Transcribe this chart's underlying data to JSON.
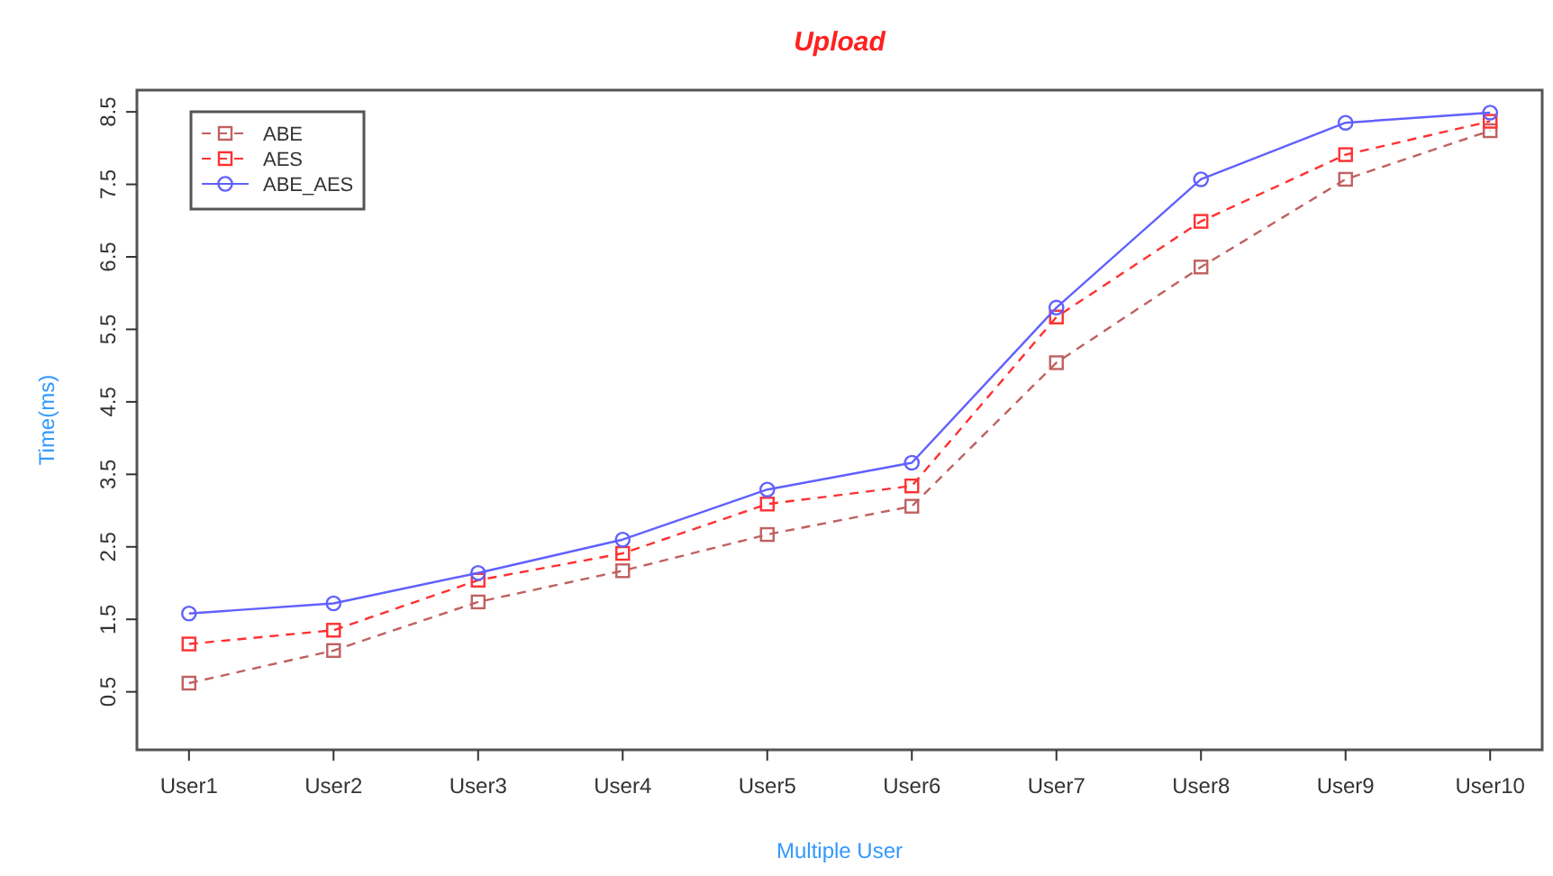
{
  "chart_data": {
    "type": "line",
    "title": "Upload",
    "xlabel": "Multiple User",
    "ylabel": "Time(ms)",
    "categories": [
      "User1",
      "User2",
      "User3",
      "User4",
      "User5",
      "User6",
      "User7",
      "User8",
      "User9",
      "User10"
    ],
    "ylim": [
      -0.3,
      8.8
    ],
    "yticks": [
      0.5,
      1.5,
      2.5,
      3.5,
      4.5,
      5.5,
      6.5,
      7.5,
      8.5
    ],
    "grid": false,
    "legend": "top left",
    "series": [
      {
        "name": "ABE",
        "color": "#c06060",
        "marker": "square",
        "line_style": "dashed",
        "values": [
          0.62,
          1.07,
          1.74,
          2.17,
          2.67,
          3.06,
          5.04,
          6.36,
          7.57,
          8.24
        ]
      },
      {
        "name": "AES",
        "color": "#ff3030",
        "marker": "square",
        "line_style": "dashed",
        "values": [
          1.16,
          1.35,
          2.04,
          2.41,
          3.09,
          3.34,
          5.67,
          6.99,
          7.91,
          8.37
        ]
      },
      {
        "name": "ABE_AES",
        "color": "#6060ff",
        "marker": "circle",
        "line_style": "solid",
        "values": [
          1.58,
          1.72,
          2.14,
          2.6,
          3.29,
          3.66,
          5.8,
          7.57,
          8.35,
          8.49
        ]
      }
    ]
  }
}
